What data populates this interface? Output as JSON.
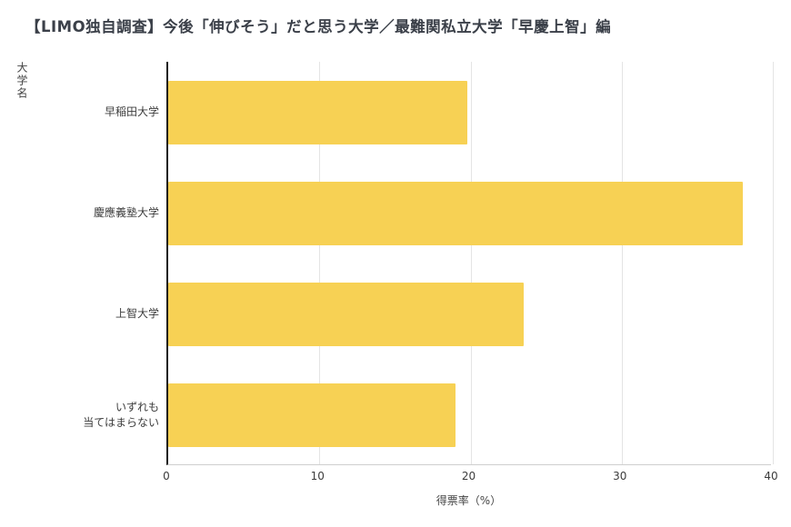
{
  "title": "【LIMO独自調査】今後「伸びそう」だと思う大学／最難関私立大学「早慶上智」編",
  "chart_data": {
    "type": "bar",
    "orientation": "horizontal",
    "title": "【LIMO独自調査】今後「伸びそう」だと思う大学／最難関私立大学「早慶上智」編",
    "categories": [
      "早稲田大学",
      "慶應義塾大学",
      "上智大学",
      "いずれも\n当てはまらない"
    ],
    "values": [
      19.8,
      38.0,
      23.5,
      19.0
    ],
    "xlabel": "得票率（%）",
    "ylabel": "大学名",
    "xlim": [
      0,
      40
    ],
    "xticks": [
      0,
      10,
      20,
      30,
      40
    ],
    "grid": true,
    "legend": "none",
    "bar_color": "#F7D154",
    "axis_color": "#1a1a1a",
    "gridline_color": "#e4e4e4"
  }
}
